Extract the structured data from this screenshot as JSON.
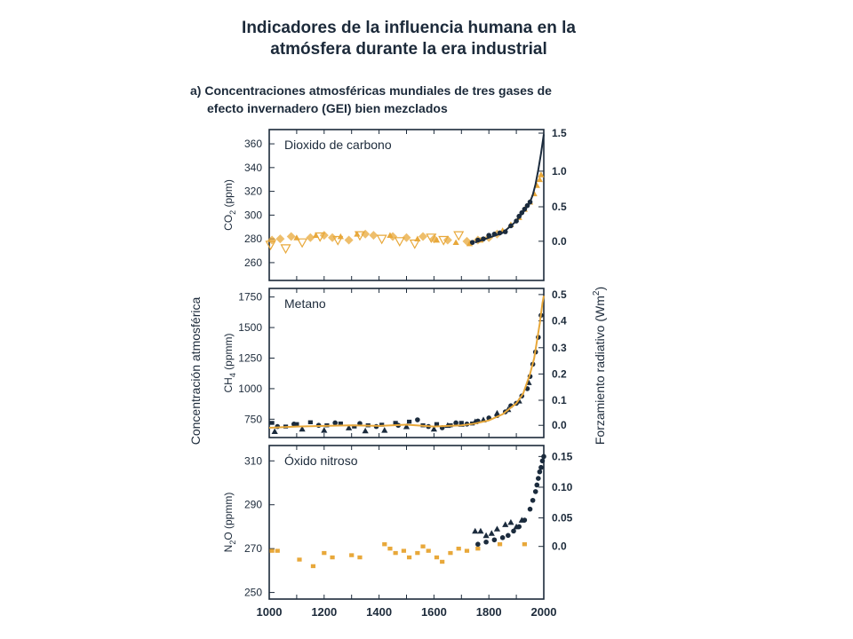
{
  "page": {
    "title_line1": "Indicadores de la influencia humana en la",
    "title_line2": "atmósfera durante la era industrial",
    "subtitle_line1": "a)  Concentraciones atmosféricas mundiales de tres gases de",
    "subtitle_line2": "efecto invernadero (GEI) bien mezclados"
  },
  "colors": {
    "frame": "#1c2a3a",
    "orange": "#e8a83a",
    "dark": "#1b2b3d"
  },
  "chart_data": [
    {
      "type": "scatter",
      "title": "Dioxido de carbono",
      "ylabel": "CO2 (ppm)",
      "ylabel_main": "CO",
      "ylabel_sub": "2",
      "ylabel_unit": " (ppm)",
      "y2label": "Forzamiento radiativo (Wm-2)",
      "xlim": [
        1000,
        2000
      ],
      "ylim": [
        245,
        372
      ],
      "yticks": [
        260,
        280,
        300,
        320,
        340,
        360
      ],
      "y2ticks": [
        {
          "label": "0.0",
          "y": 278
        },
        {
          "label": "0.5",
          "y": 307
        },
        {
          "label": "1.0",
          "y": 337
        },
        {
          "label": "1.5",
          "y": 369
        }
      ],
      "series": [
        {
          "marker": "triangle-down-open",
          "color": "#e8a83a",
          "x": [
            1005,
            1060,
            1120,
            1185,
            1250,
            1330,
            1410,
            1475,
            1530,
            1590,
            1635,
            1690
          ],
          "y": [
            275,
            272,
            277,
            282,
            279,
            283,
            280,
            278,
            276,
            281,
            279,
            283
          ]
        },
        {
          "marker": "diamond",
          "color": "#e8a83a",
          "x": [
            1010,
            1040,
            1080,
            1150,
            1200,
            1230,
            1290,
            1350,
            1380,
            1450,
            1500,
            1560,
            1600,
            1650,
            1720,
            1760,
            1800,
            1830
          ],
          "y": [
            279,
            280,
            282,
            281,
            283,
            281,
            279,
            284,
            283,
            282,
            281,
            282,
            280,
            279,
            278,
            279,
            281,
            284
          ]
        },
        {
          "marker": "triangle",
          "color": "#e8a83a",
          "x": [
            1100,
            1170,
            1260,
            1320,
            1440,
            1540,
            1610,
            1680,
            1730,
            1770,
            1850,
            1880,
            1910,
            1930,
            1950,
            1965,
            1975,
            1985,
            1990
          ],
          "y": [
            281,
            283,
            282,
            284,
            283,
            280,
            279,
            277,
            276,
            279,
            287,
            292,
            298,
            305,
            311,
            318,
            325,
            330,
            334
          ]
        },
        {
          "marker": "circle",
          "color": "#1b2b3d",
          "x": [
            1740,
            1760,
            1780,
            1800,
            1820,
            1840,
            1860,
            1880,
            1900,
            1910,
            1920,
            1930,
            1940,
            1950
          ],
          "y": [
            277,
            279,
            280,
            283,
            284,
            285,
            286,
            291,
            295,
            299,
            302,
            305,
            308,
            311
          ]
        },
        {
          "marker": "line",
          "color": "#1b2b3d",
          "x": [
            1750,
            1800,
            1850,
            1900,
            1930,
            1950,
            1960,
            1970,
            1980,
            1990,
            2000
          ],
          "y": [
            277,
            281,
            285,
            295,
            304,
            311,
            317,
            326,
            338,
            352,
            368
          ]
        }
      ]
    },
    {
      "type": "scatter",
      "title": "Metano",
      "ylabel": "CH4 (ppmm)",
      "ylabel_main": "CH",
      "ylabel_sub": "4",
      "ylabel_unit": "  (ppmm)",
      "y2label": "Forzamiento radiativo (Wm-2)",
      "xlim": [
        1000,
        2000
      ],
      "ylim": [
        600,
        1820
      ],
      "yticks": [
        750,
        1000,
        1250,
        1500,
        1750
      ],
      "y2ticks": [
        {
          "label": "0.0",
          "y": 700
        },
        {
          "label": "0.1",
          "y": 905
        },
        {
          "label": "0.2",
          "y": 1120
        },
        {
          "label": "0.3",
          "y": 1335
        },
        {
          "label": "0.4",
          "y": 1555
        },
        {
          "label": "0.5",
          "y": 1770
        }
      ],
      "series": [
        {
          "marker": "square",
          "color": "#1b2b3d",
          "x": [
            1010,
            1060,
            1100,
            1150,
            1210,
            1260,
            1310,
            1360,
            1410,
            1460,
            1510,
            1560,
            1610,
            1660,
            1700,
            1740
          ],
          "y": [
            720,
            690,
            710,
            725,
            700,
            715,
            690,
            700,
            705,
            720,
            730,
            700,
            710,
            700,
            720,
            715
          ]
        },
        {
          "marker": "circle",
          "color": "#1b2b3d",
          "x": [
            1030,
            1090,
            1180,
            1240,
            1330,
            1390,
            1470,
            1540,
            1580,
            1630,
            1680,
            1720,
            1760,
            1800,
            1830,
            1860,
            1880,
            1900,
            1920,
            1940,
            1950,
            1960,
            1970,
            1980,
            1990
          ],
          "y": [
            690,
            710,
            700,
            720,
            715,
            690,
            700,
            745,
            690,
            680,
            720,
            710,
            735,
            760,
            780,
            810,
            860,
            880,
            940,
            1000,
            1100,
            1200,
            1300,
            1420,
            1600
          ]
        },
        {
          "marker": "triangle",
          "color": "#1b2b3d",
          "x": [
            1020,
            1120,
            1200,
            1290,
            1350,
            1420,
            1500,
            1600,
            1650,
            1700,
            1750,
            1780,
            1830,
            1870,
            1910,
            1945
          ],
          "y": [
            650,
            670,
            660,
            680,
            655,
            660,
            690,
            670,
            700,
            710,
            730,
            745,
            800,
            830,
            900,
            1050
          ]
        },
        {
          "marker": "line",
          "color": "#e8a83a",
          "x": [
            1000,
            1100,
            1200,
            1300,
            1400,
            1500,
            1600,
            1700,
            1750,
            1800,
            1850,
            1900,
            1925,
            1950,
            1965,
            1975,
            1985,
            1995,
            2000
          ],
          "y": [
            680,
            690,
            695,
            700,
            695,
            705,
            690,
            700,
            715,
            740,
            790,
            880,
            960,
            1120,
            1250,
            1390,
            1530,
            1700,
            1760
          ]
        }
      ]
    },
    {
      "type": "scatter",
      "title": "Óxido nitroso",
      "ylabel": "N2O (ppmm)",
      "ylabel_main": "N",
      "ylabel_sub": "2",
      "ylabel_unit": "O  (ppmm)",
      "y2label": "Forzamiento radiativo (Wm-2)",
      "xlim": [
        1000,
        2000
      ],
      "ylim": [
        247,
        317
      ],
      "yticks": [
        250,
        270,
        290,
        310
      ],
      "y2ticks": [
        {
          "label": "0.0",
          "y": 271
        },
        {
          "label": "0.05",
          "y": 284
        },
        {
          "label": "0.10",
          "y": 298
        },
        {
          "label": "0.15",
          "y": 312
        }
      ],
      "xticks": [
        1000,
        1200,
        1400,
        1600,
        1800,
        2000
      ],
      "xlabel": "",
      "series": [
        {
          "marker": "square",
          "color": "#e8a83a",
          "x": [
            1010,
            1030,
            1110,
            1160,
            1200,
            1230,
            1300,
            1330,
            1420,
            1440,
            1460,
            1490,
            1510,
            1540,
            1560,
            1580,
            1610,
            1630,
            1660,
            1690,
            1720,
            1760,
            1840,
            1930
          ],
          "y": [
            269,
            269,
            265,
            262,
            268,
            266,
            267,
            266,
            272,
            270,
            268,
            269,
            266,
            268,
            271,
            269,
            266,
            264,
            268,
            270,
            269,
            270,
            272,
            272
          ]
        },
        {
          "marker": "triangle",
          "color": "#1b2b3d",
          "x": [
            1750,
            1770,
            1790,
            1810,
            1830,
            1860,
            1880,
            1900,
            1920
          ],
          "y": [
            278,
            278,
            276,
            277,
            279,
            281,
            282,
            280,
            283
          ]
        },
        {
          "marker": "circle",
          "color": "#1b2b3d",
          "x": [
            1760,
            1790,
            1820,
            1850,
            1870,
            1890,
            1910,
            1930,
            1950,
            1960,
            1970,
            1975,
            1980,
            1985,
            1990,
            1995,
            2000
          ],
          "y": [
            272,
            273,
            274,
            275,
            276,
            278,
            280,
            283,
            288,
            292,
            296,
            299,
            302,
            305,
            307,
            310,
            312
          ]
        }
      ]
    }
  ],
  "y_left_title": "Concentración atmosférica",
  "y_right_title_main": "Forzamiento radiativo  (Wm",
  "y_right_title_sup": "2",
  "y_right_title_end": ")"
}
